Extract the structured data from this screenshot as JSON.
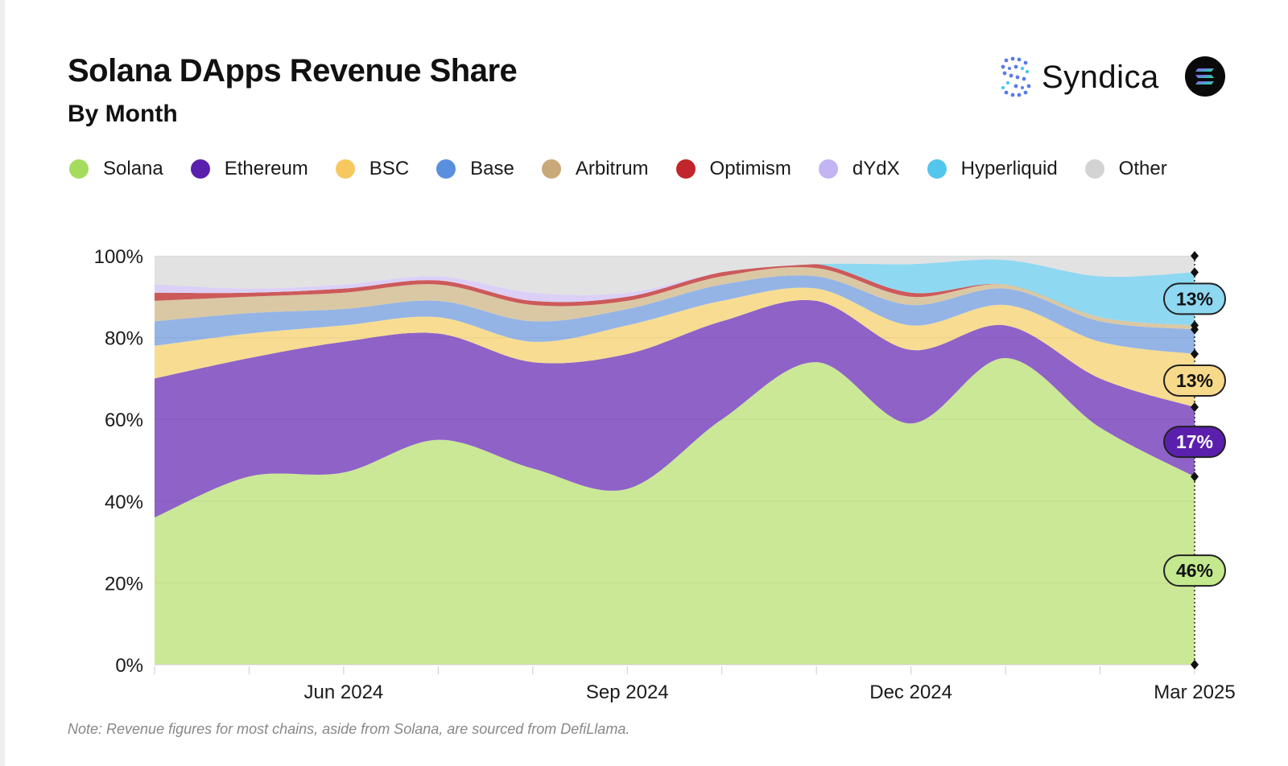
{
  "header": {
    "title": "Solana DApps Revenue Share",
    "subtitle": "By Month",
    "brand": "Syndica"
  },
  "note": "Note: Revenue figures for most chains, aside from Solana, are sourced from DefiLlama.",
  "chart_data": {
    "type": "area",
    "stacked": true,
    "title": "Solana DApps Revenue Share",
    "subtitle": "By Month",
    "xlabel": "",
    "ylabel": "",
    "ylim": [
      0,
      100
    ],
    "y_ticks": [
      "0%",
      "20%",
      "40%",
      "60%",
      "80%",
      "100%"
    ],
    "x_tick_labels": [
      {
        "index": 2,
        "label": "Jun 2024"
      },
      {
        "index": 5,
        "label": "Sep 2024"
      },
      {
        "index": 8,
        "label": "Dec 2024"
      },
      {
        "index": 11,
        "label": "Mar 2025"
      }
    ],
    "x": [
      "Apr 2024",
      "May 2024",
      "Jun 2024",
      "Jul 2024",
      "Aug 2024",
      "Sep 2024",
      "Oct 2024",
      "Nov 2024",
      "Dec 2024",
      "Jan 2025",
      "Feb 2025",
      "Mar 2025"
    ],
    "grid": true,
    "legend": "top",
    "series": [
      {
        "name": "Solana",
        "color": "#cbe896",
        "legend_color": "#a6dc5e",
        "values": [
          36,
          46,
          47,
          55,
          48,
          43,
          60,
          74,
          59,
          75,
          58,
          46
        ]
      },
      {
        "name": "Ethereum",
        "color": "#8f62c8",
        "legend_color": "#5b1fad",
        "values": [
          34,
          29,
          32,
          26,
          26,
          33,
          24,
          15,
          18,
          8,
          12,
          17
        ]
      },
      {
        "name": "BSC",
        "color": "#f7dc92",
        "legend_color": "#f6c85f",
        "values": [
          8,
          6,
          4,
          4,
          5,
          7,
          5,
          3,
          6,
          5,
          9,
          13
        ]
      },
      {
        "name": "Base",
        "color": "#94b4e6",
        "legend_color": "#5a8ede",
        "values": [
          6,
          5,
          4,
          4,
          5,
          4,
          4,
          3,
          5,
          4,
          5,
          6
        ]
      },
      {
        "name": "Arbitrum",
        "color": "#dac8a4",
        "legend_color": "#c9a97a",
        "values": [
          5,
          4,
          4,
          4,
          4,
          2,
          2,
          2,
          2,
          1,
          1,
          1
        ]
      },
      {
        "name": "Optimism",
        "color": "#cc5a5a",
        "legend_color": "#c0262b",
        "values": [
          2,
          1,
          1,
          1,
          1,
          1,
          1,
          1,
          1,
          0,
          0,
          0
        ]
      },
      {
        "name": "dYdX",
        "color": "#dcd0f7",
        "legend_color": "#c3b4f3",
        "values": [
          2,
          1,
          1,
          1,
          2,
          1,
          0,
          0,
          0,
          0,
          0,
          0
        ]
      },
      {
        "name": "Hyperliquid",
        "color": "#8fd8f2",
        "legend_color": "#53c6ee",
        "values": [
          0,
          0,
          0,
          0,
          0,
          0,
          0,
          0,
          7,
          6,
          10,
          13
        ]
      },
      {
        "name": "Other",
        "color": "#e2e2e2",
        "legend_color": "#d3d3d3",
        "values": [
          7,
          8,
          7,
          5,
          9,
          9,
          4,
          2,
          2,
          1,
          5,
          4
        ]
      }
    ],
    "end_labels": [
      {
        "series": "Hyperliquid",
        "text": "13%",
        "fill": "#8fd8f2",
        "text_color": "#111111"
      },
      {
        "series": "BSC",
        "text": "13%",
        "fill": "#f7d98a",
        "text_color": "#111111"
      },
      {
        "series": "Ethereum",
        "text": "17%",
        "fill": "#5b1fad",
        "text_color": "#ffffff"
      },
      {
        "series": "Solana",
        "text": "46%",
        "fill": "#c3e88e",
        "text_color": "#111111"
      }
    ]
  }
}
